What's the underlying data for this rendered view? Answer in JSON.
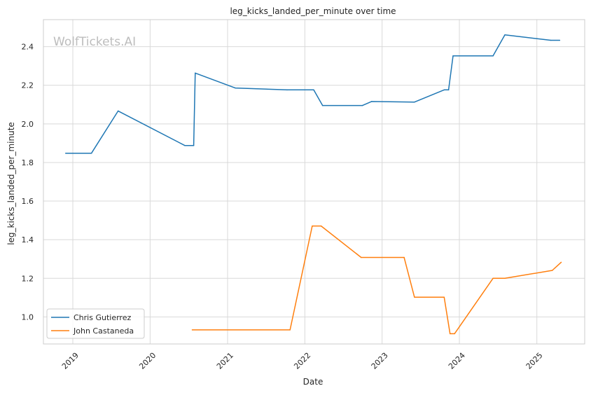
{
  "chart_data": {
    "type": "line",
    "title": "leg_kicks_landed_per_minute over time",
    "xlabel": "Date",
    "ylabel": "leg_kicks_landed_per_minute",
    "watermark": "WolfTickets.AI",
    "ylim": [
      0.86,
      2.54
    ],
    "xlim": [
      "2018-08-15",
      "2025-08-15"
    ],
    "x_ticks": [
      "2019",
      "2020",
      "2021",
      "2022",
      "2023",
      "2024",
      "2025"
    ],
    "y_ticks": [
      "1.0",
      "1.2",
      "1.4",
      "1.6",
      "1.8",
      "2.0",
      "2.2",
      "2.4"
    ],
    "grid": true,
    "legend_position": "lower-left",
    "series": [
      {
        "name": "Chris Gutierrez",
        "color": "#1f77b4",
        "points": [
          [
            "2018-11-28",
            1.848
          ],
          [
            "2019-03-30",
            1.848
          ],
          [
            "2019-08-03",
            2.067
          ],
          [
            "2020-06-13",
            1.888
          ],
          [
            "2020-07-25",
            1.888
          ],
          [
            "2020-08-01",
            2.263
          ],
          [
            "2021-02-06",
            2.186
          ],
          [
            "2021-10-09",
            2.176
          ],
          [
            "2022-02-12",
            2.176
          ],
          [
            "2022-03-26",
            2.095
          ],
          [
            "2022-09-30",
            2.095
          ],
          [
            "2022-11-12",
            2.116
          ],
          [
            "2023-06-03",
            2.113
          ],
          [
            "2023-10-21",
            2.176
          ],
          [
            "2023-11-11",
            2.176
          ],
          [
            "2023-12-02",
            2.352
          ],
          [
            "2024-06-08",
            2.352
          ],
          [
            "2024-08-03",
            2.461
          ],
          [
            "2025-03-08",
            2.433
          ],
          [
            "2025-04-19",
            2.433
          ]
        ]
      },
      {
        "name": "John Castaneda",
        "color": "#ff7f0e",
        "points": [
          [
            "2020-07-18",
            0.933
          ],
          [
            "2021-10-23",
            0.933
          ],
          [
            "2022-02-05",
            1.471
          ],
          [
            "2022-03-19",
            1.471
          ],
          [
            "2022-09-24",
            1.308
          ],
          [
            "2023-04-15",
            1.308
          ],
          [
            "2023-06-03",
            1.102
          ],
          [
            "2023-10-21",
            1.102
          ],
          [
            "2023-11-18",
            0.913
          ],
          [
            "2023-12-09",
            0.913
          ],
          [
            "2024-06-08",
            1.2
          ],
          [
            "2024-08-03",
            1.2
          ],
          [
            "2025-03-15",
            1.241
          ],
          [
            "2025-04-26",
            1.283
          ]
        ]
      }
    ]
  }
}
